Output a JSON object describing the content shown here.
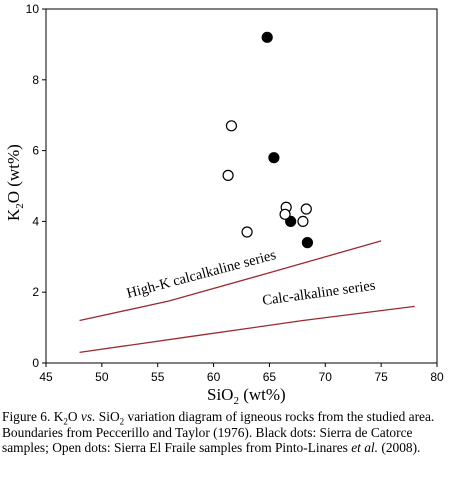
{
  "chart_data": {
    "type": "scatter",
    "xlabel": "SiO2 (wt%)",
    "ylabel": "K2O (wt%)",
    "xlim": [
      45,
      80
    ],
    "ylim": [
      0,
      10
    ],
    "xticks": [
      45,
      50,
      55,
      60,
      65,
      70,
      75,
      80
    ],
    "yticks": [
      0,
      2,
      4,
      6,
      8,
      10
    ],
    "grid": false,
    "series": [
      {
        "name": "Sierra de Catorce samples",
        "marker": "filled-circle",
        "color": "#000000",
        "points": [
          [
            64.8,
            9.2
          ],
          [
            65.4,
            5.8
          ],
          [
            66.9,
            4.0
          ],
          [
            68.4,
            3.4
          ]
        ]
      },
      {
        "name": "Sierra El Fraile samples from Pinto-Linares et al. (2008)",
        "marker": "open-circle",
        "color": "#000000",
        "points": [
          [
            61.6,
            6.7
          ],
          [
            61.3,
            5.3
          ],
          [
            63.0,
            3.7
          ],
          [
            66.5,
            4.4
          ],
          [
            66.4,
            4.2
          ],
          [
            68.0,
            4.0
          ],
          [
            68.3,
            4.35
          ]
        ]
      }
    ],
    "boundaries": [
      {
        "label": "High-K calcalkaline series",
        "color": "#9b2a2f",
        "points": [
          [
            48,
            1.2
          ],
          [
            56,
            1.75
          ],
          [
            65,
            2.55
          ],
          [
            75,
            3.45
          ]
        ]
      },
      {
        "label": "Calc-alkaline series",
        "color": "#9b2a2f",
        "points": [
          [
            48,
            0.3
          ],
          [
            58,
            0.75
          ],
          [
            68,
            1.2
          ],
          [
            78,
            1.6
          ]
        ]
      }
    ]
  },
  "caption": {
    "figure_label": "Figure 6.",
    "k_prefix": "K",
    "k_sub": "2",
    "k_suffix": "O",
    "vs": "vs.",
    "si_prefix": "SiO",
    "si_sub": "2",
    "text_main": "variation diagram of igneous rocks from the studied area. Boundaries from Peccerillo and Taylor (1976). Black dots: Sierra de Catorce samples; Open dots: Sierra El Fraile samples from Pinto-Linares",
    "et_al": "et al.",
    "text_end": "(2008)."
  }
}
